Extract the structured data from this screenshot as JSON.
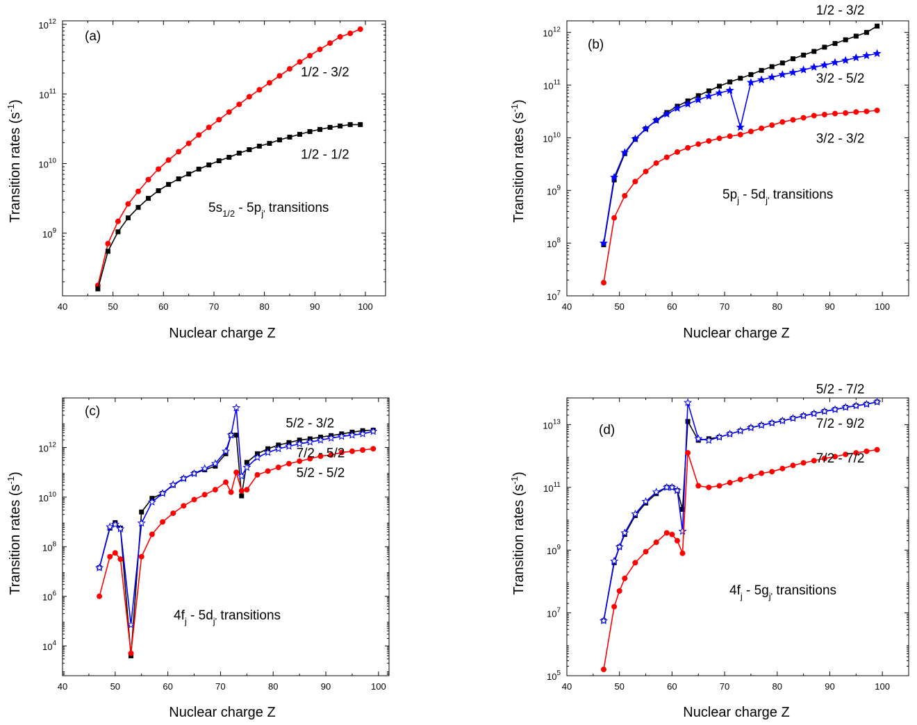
{
  "chart_data": [
    {
      "type": "line",
      "panel": "(a)",
      "xlabel": "Nuclear charge Z",
      "ylabel": "Transition rates (s-1)",
      "xlim": [
        40,
        104
      ],
      "ylog": true,
      "ylim_exp": [
        8.1,
        12.05
      ],
      "xticks": [
        40,
        50,
        60,
        70,
        80,
        90,
        100
      ],
      "yticks": [
        9,
        10,
        11,
        12
      ],
      "annotation": {
        "main": "5s",
        "sub1": "1/2",
        "mid": " - 5p",
        "sub2": "j'",
        "tail": " transitions"
      },
      "series": [
        {
          "name": "1/2 - 3/2",
          "color": "#ff0000",
          "marker": "circle",
          "x": [
            47,
            49,
            51,
            53,
            55,
            57,
            59,
            61,
            63,
            65,
            67,
            69,
            71,
            73,
            75,
            77,
            79,
            81,
            83,
            85,
            87,
            89,
            91,
            93,
            95,
            97,
            99
          ],
          "logy": [
            8.25,
            8.85,
            9.17,
            9.42,
            9.6,
            9.77,
            9.92,
            10.05,
            10.17,
            10.29,
            10.41,
            10.52,
            10.63,
            10.74,
            10.85,
            10.96,
            11.06,
            11.16,
            11.26,
            11.36,
            11.46,
            11.55,
            11.64,
            11.73,
            11.82,
            11.87,
            11.93
          ]
        },
        {
          "name": "1/2 - 1/2",
          "color": "#000000",
          "marker": "square",
          "x": [
            47,
            49,
            51,
            53,
            55,
            57,
            59,
            61,
            63,
            65,
            67,
            69,
            71,
            73,
            75,
            77,
            79,
            81,
            83,
            85,
            87,
            89,
            91,
            93,
            95,
            97,
            99
          ],
          "logy": [
            8.2,
            8.74,
            9.02,
            9.22,
            9.37,
            9.5,
            9.61,
            9.7,
            9.78,
            9.85,
            9.92,
            9.98,
            10.04,
            10.09,
            10.15,
            10.2,
            10.25,
            10.29,
            10.34,
            10.38,
            10.42,
            10.46,
            10.49,
            10.52,
            10.54,
            10.56,
            10.56
          ]
        }
      ],
      "series_labels": [
        {
          "text": "1/2 - 3/2",
          "x": 92,
          "logy": 11.32
        },
        {
          "text": "1/2 - 1/2",
          "x": 92,
          "logy": 10.14
        }
      ]
    },
    {
      "type": "line",
      "panel": "(b)",
      "xlabel": "Nuclear charge Z",
      "ylabel": "Transition rates (s-1)",
      "xlim": [
        40,
        105
      ],
      "ylog": true,
      "ylim_exp": [
        7,
        12.22
      ],
      "xticks": [
        40,
        50,
        60,
        70,
        80,
        90,
        100
      ],
      "yticks": [
        7,
        8,
        9,
        10,
        11,
        12
      ],
      "annotation": {
        "main": "5p",
        "sub1": "j",
        "mid": " - 5d",
        "sub2": "j'",
        "tail": " transitions"
      },
      "series": [
        {
          "name": "1/2 - 3/2",
          "color": "#000000",
          "marker": "square",
          "x": [
            47,
            49,
            51,
            53,
            55,
            57,
            59,
            61,
            63,
            65,
            67,
            69,
            71,
            73,
            75,
            77,
            79,
            81,
            83,
            85,
            87,
            89,
            91,
            93,
            95,
            97,
            99
          ],
          "logy": [
            7.97,
            9.2,
            9.7,
            9.97,
            10.17,
            10.33,
            10.48,
            10.6,
            10.7,
            10.8,
            10.89,
            10.98,
            11.06,
            11.13,
            11.2,
            11.28,
            11.35,
            11.42,
            11.5,
            11.57,
            11.64,
            11.72,
            11.79,
            11.86,
            11.93,
            12.0,
            12.12
          ]
        },
        {
          "name": "3/2 - 5/2",
          "color": "#0000ff",
          "marker": "star",
          "x": [
            47,
            49,
            51,
            53,
            55,
            57,
            59,
            61,
            63,
            65,
            67,
            69,
            71,
            73,
            75,
            77,
            79,
            81,
            83,
            85,
            87,
            89,
            91,
            93,
            95,
            97,
            99
          ],
          "logy": [
            8.0,
            9.25,
            9.72,
            9.98,
            10.17,
            10.33,
            10.45,
            10.56,
            10.64,
            10.72,
            10.79,
            10.85,
            10.9,
            10.2,
            11.05,
            11.1,
            11.15,
            11.2,
            11.24,
            11.29,
            11.34,
            11.38,
            11.43,
            11.47,
            11.52,
            11.56,
            11.6
          ]
        },
        {
          "name": "3/2 - 3/2",
          "color": "#ff0000",
          "marker": "circle",
          "x": [
            47,
            49,
            51,
            53,
            55,
            57,
            59,
            61,
            63,
            65,
            67,
            69,
            71,
            73,
            75,
            77,
            79,
            81,
            83,
            85,
            87,
            89,
            91,
            93,
            95,
            97,
            99
          ],
          "logy": [
            7.25,
            8.48,
            8.9,
            9.17,
            9.36,
            9.52,
            9.63,
            9.73,
            9.81,
            9.88,
            9.94,
            9.99,
            10.03,
            10.06,
            10.12,
            10.18,
            10.24,
            10.3,
            10.34,
            10.38,
            10.42,
            10.44,
            10.46,
            10.47,
            10.49,
            10.5,
            10.52
          ]
        }
      ],
      "series_labels": [
        {
          "text": "1/2 - 3/2",
          "x": 92,
          "logy": 12.43
        },
        {
          "text": "3/2 - 5/2",
          "x": 92,
          "logy": 11.14
        },
        {
          "text": "3/2 - 3/2",
          "x": 92,
          "logy": 10.0
        }
      ]
    },
    {
      "type": "line",
      "panel": "(c)",
      "xlabel": "Nuclear charge Z",
      "ylabel": "Transition rates (s-1)",
      "xlim": [
        40,
        102
      ],
      "ylog": true,
      "ylim_exp": [
        2.8,
        14.0
      ],
      "xticks": [
        40,
        50,
        60,
        70,
        80,
        90,
        100
      ],
      "yticks": [
        4,
        6,
        8,
        10,
        12
      ],
      "annotation": {
        "main": "4f",
        "sub1": "j",
        "mid": " - 5d",
        "sub2": "j'",
        "tail": " transitions"
      },
      "series": [
        {
          "name": "5/2 - 3/2",
          "color": "#000000",
          "marker": "square",
          "x": [
            47,
            49,
            50,
            51,
            53,
            55,
            57,
            59,
            61,
            63,
            65,
            67,
            69,
            71,
            72,
            73,
            74,
            75,
            77,
            79,
            81,
            83,
            85,
            87,
            89,
            91,
            93,
            95,
            97,
            99
          ],
          "logy": [
            7.15,
            8.75,
            8.97,
            8.75,
            3.6,
            9.4,
            9.95,
            10.15,
            10.48,
            10.75,
            10.95,
            11.1,
            11.25,
            11.75,
            12.5,
            12.5,
            10.05,
            11.4,
            11.75,
            11.95,
            12.1,
            12.2,
            12.3,
            12.35,
            12.42,
            12.48,
            12.55,
            12.62,
            12.68,
            12.7
          ]
        },
        {
          "name": "7/2 - 5/2",
          "color": "#0000ff",
          "marker": "star",
          "x": [
            47,
            49,
            50,
            51,
            53,
            55,
            57,
            59,
            61,
            63,
            65,
            67,
            69,
            71,
            72,
            73,
            74,
            75,
            77,
            79,
            81,
            83,
            85,
            87,
            89,
            91,
            93,
            95,
            97,
            99
          ],
          "logy": [
            7.15,
            8.8,
            8.9,
            8.72,
            4.85,
            8.95,
            9.8,
            10.15,
            10.5,
            10.75,
            10.95,
            11.15,
            11.35,
            11.85,
            12.5,
            13.6,
            10.85,
            11.2,
            11.6,
            11.8,
            11.95,
            12.05,
            12.15,
            12.22,
            12.3,
            12.38,
            12.45,
            12.5,
            12.55,
            12.65
          ]
        },
        {
          "name": "5/2 - 5/2",
          "color": "#ff0000",
          "marker": "circle",
          "x": [
            47,
            49,
            50,
            51,
            53,
            55,
            57,
            59,
            61,
            63,
            65,
            67,
            69,
            71,
            72,
            73,
            74,
            75,
            77,
            79,
            81,
            83,
            85,
            87,
            89,
            91,
            93,
            95,
            97,
            99
          ],
          "logy": [
            6.0,
            7.6,
            7.75,
            7.5,
            3.7,
            7.6,
            8.5,
            9.0,
            9.35,
            9.65,
            9.9,
            10.1,
            10.3,
            10.6,
            10.2,
            11.0,
            10.25,
            10.3,
            10.9,
            11.05,
            11.2,
            11.35,
            11.45,
            11.55,
            11.65,
            11.7,
            11.8,
            11.85,
            11.9,
            11.95
          ]
        }
      ],
      "series_labels": [
        {
          "text": "5/2 - 3/2",
          "x": 87,
          "logy": 13.0
        },
        {
          "text": "7/2 - 5/2",
          "x": 89,
          "logy": 11.8
        },
        {
          "text": "5/2 - 5/2",
          "x": 89,
          "logy": 11.0
        }
      ]
    },
    {
      "type": "line",
      "panel": "(d)",
      "xlabel": "Nuclear charge Z",
      "ylabel": "Transition rates (s-1)",
      "xlim": [
        40,
        105
      ],
      "ylog": true,
      "ylim_exp": [
        5,
        13.85
      ],
      "xticks": [
        40,
        50,
        60,
        70,
        80,
        90,
        100
      ],
      "yticks": [
        5,
        7,
        9,
        11,
        13
      ],
      "annotation": {
        "main": "4f",
        "sub1": "j",
        "mid": " - 5g",
        "sub2": "j'",
        "tail": " transitions"
      },
      "series": [
        {
          "name": "5/2 - 7/2",
          "color": "#000000",
          "marker": "square",
          "x": [
            47,
            49,
            50,
            51,
            53,
            55,
            57,
            59,
            60,
            61,
            62,
            63,
            65,
            67,
            69,
            71,
            73,
            75,
            77,
            79,
            81,
            83,
            85,
            87,
            89,
            91,
            93,
            95,
            97,
            99
          ],
          "logy": [
            6.75,
            8.6,
            9.1,
            9.5,
            10.1,
            10.5,
            10.8,
            11.0,
            11.0,
            10.9,
            10.3,
            13.1,
            12.5,
            12.55,
            12.6,
            12.7,
            12.8,
            12.9,
            12.98,
            13.05,
            13.12,
            13.2,
            13.28,
            13.35,
            13.42,
            13.48,
            13.55,
            13.6,
            13.65,
            13.72
          ]
        },
        {
          "name": "7/2 - 9/2",
          "color": "#0000ff",
          "marker": "star",
          "x": [
            47,
            49,
            50,
            51,
            53,
            55,
            57,
            59,
            60,
            61,
            62,
            63,
            65,
            67,
            69,
            71,
            73,
            75,
            77,
            79,
            81,
            83,
            85,
            87,
            89,
            91,
            93,
            95,
            97,
            99
          ],
          "logy": [
            6.75,
            8.65,
            9.1,
            9.55,
            10.15,
            10.55,
            10.85,
            11.0,
            11.0,
            10.9,
            9.6,
            13.7,
            12.55,
            12.5,
            12.6,
            12.7,
            12.8,
            12.9,
            12.98,
            13.05,
            13.12,
            13.2,
            13.28,
            13.35,
            13.42,
            13.48,
            13.55,
            13.6,
            13.65,
            13.72
          ]
        },
        {
          "name": "7/2 - 7/2",
          "color": "#ff0000",
          "marker": "circle",
          "x": [
            47,
            49,
            50,
            51,
            53,
            55,
            57,
            59,
            60,
            61,
            62,
            63,
            65,
            67,
            69,
            71,
            73,
            75,
            77,
            79,
            81,
            83,
            85,
            87,
            89,
            91,
            93,
            95,
            97,
            99
          ],
          "logy": [
            5.2,
            7.2,
            7.7,
            8.1,
            8.6,
            8.95,
            9.25,
            9.55,
            9.5,
            9.3,
            8.9,
            12.1,
            11.05,
            11.0,
            11.05,
            11.15,
            11.25,
            11.35,
            11.45,
            11.5,
            11.6,
            11.7,
            11.78,
            11.85,
            11.92,
            11.98,
            12.05,
            12.1,
            12.15,
            12.2
          ]
        }
      ],
      "series_labels": [
        {
          "text": "5/2 - 7/2",
          "x": 92,
          "logy": 14.15
        },
        {
          "text": "7/2 - 9/2",
          "x": 92,
          "logy": 13.05
        },
        {
          "text": "7/2 - 7/2",
          "x": 92,
          "logy": 11.95
        }
      ]
    }
  ]
}
